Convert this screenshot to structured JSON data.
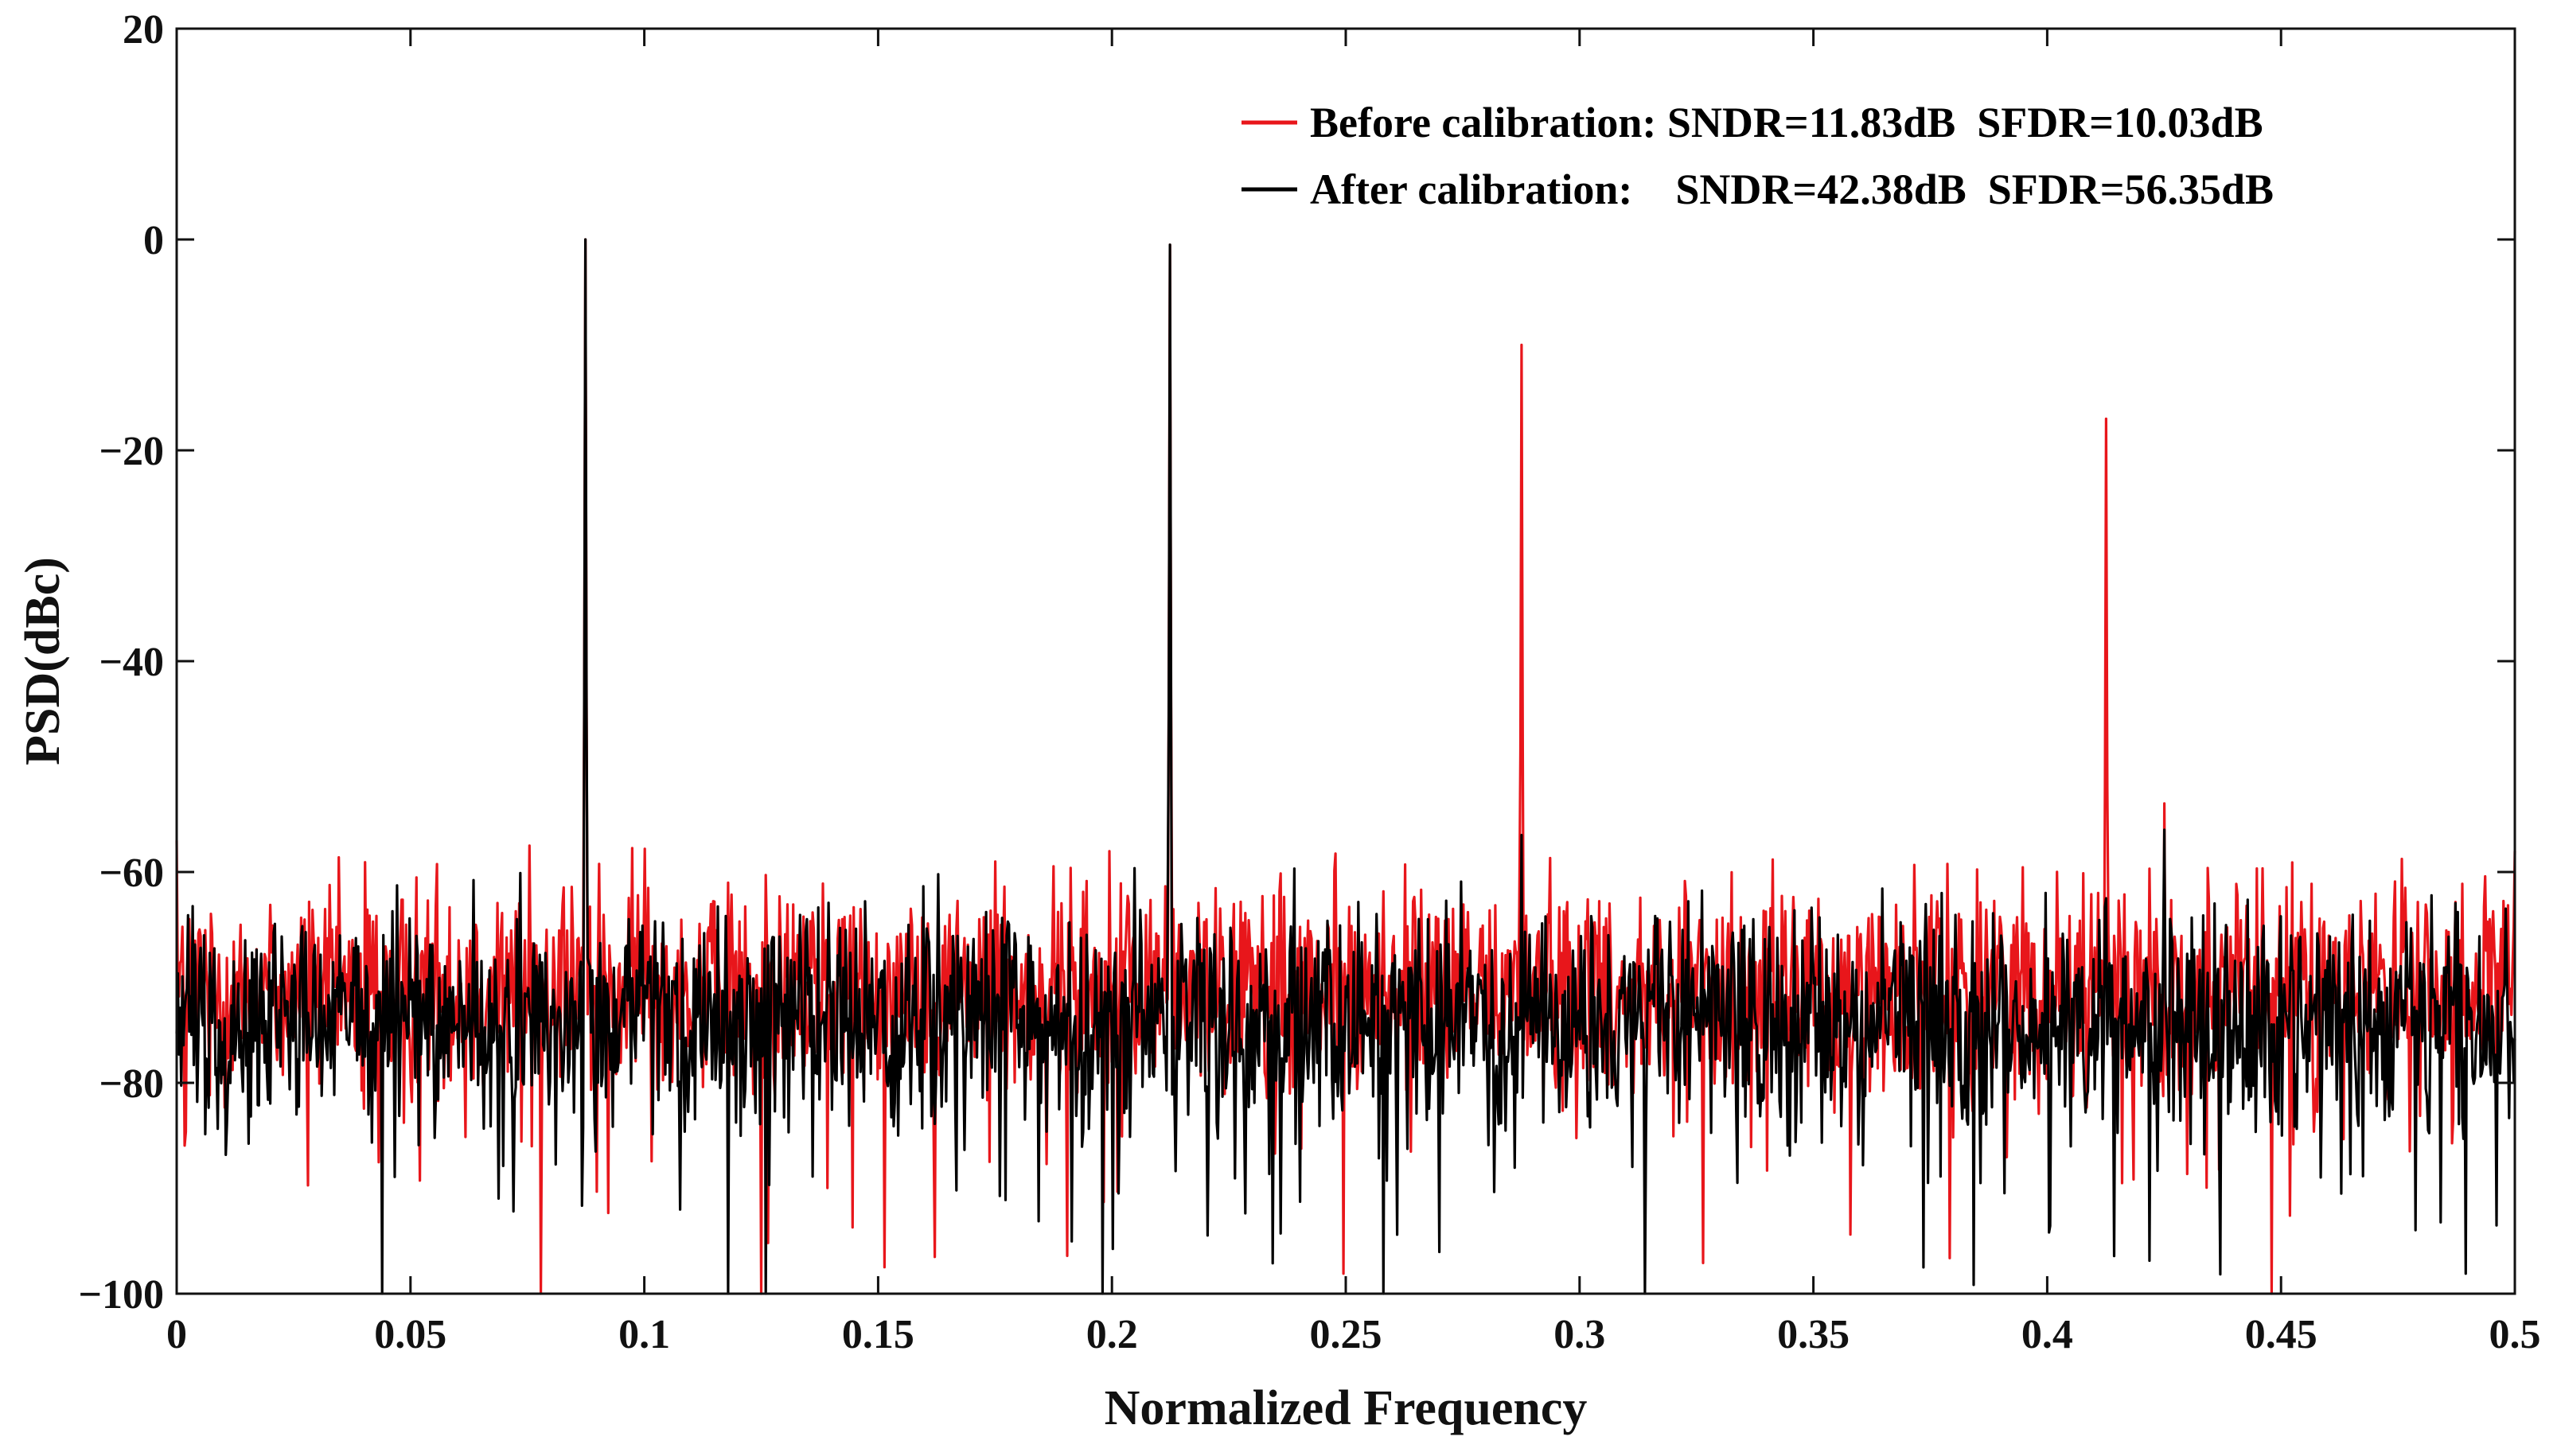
{
  "chart_data": {
    "type": "line",
    "title": "",
    "xlabel": "Normalized Frequency",
    "ylabel": "PSD(dBc)",
    "xlim": [
      0,
      0.5
    ],
    "ylim": [
      -100,
      20
    ],
    "xticks": [
      0,
      0.05,
      0.1,
      0.15,
      0.2,
      0.25,
      0.3,
      0.35,
      0.4,
      0.45,
      0.5
    ],
    "xtick_labels": [
      "0",
      "0.05",
      "0.1",
      "0.15",
      "0.2",
      "0.25",
      "0.3",
      "0.35",
      "0.4",
      "0.45",
      "0.5"
    ],
    "yticks": [
      20,
      0,
      -20,
      -40,
      -60,
      -80,
      -100
    ],
    "ytick_labels": [
      "20",
      "0",
      "−20",
      "−40",
      "−60",
      "−80",
      "−100"
    ],
    "grid": false,
    "legend_position": "top-right",
    "series": [
      {
        "name": "Before calibration",
        "legend_label": "Before calibration: SNDR=11.83dB  SFDR=10.03dB",
        "color": "#e8161b",
        "noise_floor": {
          "mean_db": -71,
          "spread_db": 5
        },
        "spikes": [
          {
            "x": 0.0,
            "y": -57
          },
          {
            "x": 0.0755,
            "y": -57.5
          },
          {
            "x": 0.0875,
            "y": 0
          },
          {
            "x": 0.1,
            "y": -57.8
          },
          {
            "x": 0.175,
            "y": -59
          },
          {
            "x": 0.2125,
            "y": -0.5
          },
          {
            "x": 0.2875,
            "y": -10
          },
          {
            "x": 0.4125,
            "y": -17
          },
          {
            "x": 0.425,
            "y": -53.5
          },
          {
            "x": 0.5,
            "y": -58
          }
        ],
        "dips": [
          {
            "x": 0.078,
            "y": -100
          },
          {
            "x": 0.125,
            "y": -100
          },
          {
            "x": 0.448,
            "y": -100
          }
        ]
      },
      {
        "name": "After calibration",
        "legend_label": "After calibration:    SNDR=42.38dB  SFDR=56.35dB",
        "color": "#000000",
        "noise_floor": {
          "mean_db": -74,
          "spread_db": 5
        },
        "spikes": [
          {
            "x": 0.0875,
            "y": 0
          },
          {
            "x": 0.2125,
            "y": -0.5
          },
          {
            "x": 0.2875,
            "y": -56.5
          },
          {
            "x": 0.4125,
            "y": -62.5
          },
          {
            "x": 0.425,
            "y": -56
          }
        ],
        "dips": [
          {
            "x": 0.044,
            "y": -100
          },
          {
            "x": 0.118,
            "y": -100
          },
          {
            "x": 0.126,
            "y": -100
          },
          {
            "x": 0.258,
            "y": -100
          },
          {
            "x": 0.314,
            "y": -100
          }
        ]
      }
    ]
  }
}
